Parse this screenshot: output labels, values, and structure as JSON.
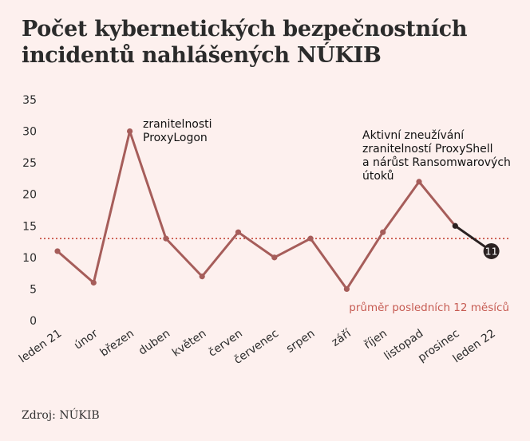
{
  "title": "Počet kybernetických bezpečnostních incidentů nahlášených NÚKIB",
  "source": "Zdroj: NÚKIB",
  "colors": {
    "background": "#fdf0ee",
    "line": "#a65d5a",
    "last_segment": "#2b2222",
    "average_line": "#c0392b",
    "average_label": "#c65b52",
    "text": "#2b2b2b"
  },
  "chart_data": {
    "type": "line",
    "categories": [
      "leden 21",
      "únor",
      "březen",
      "duben",
      "květen",
      "červen",
      "červenec",
      "srpen",
      "září",
      "říjen",
      "listopad",
      "prosinec",
      "leden 22"
    ],
    "values": [
      11,
      6,
      30,
      13,
      7,
      14,
      10,
      13,
      5,
      14,
      22,
      15,
      11
    ],
    "ylim": [
      0,
      35
    ],
    "yticks": [
      0,
      5,
      10,
      15,
      20,
      25,
      30,
      35
    ],
    "grid": false,
    "average": {
      "value": 13,
      "label": "průměr posledních 12 měsíců"
    },
    "highlight": {
      "index": 12,
      "label": "11"
    },
    "annotations": [
      {
        "index": 2,
        "lines": [
          "zranitelnosti",
          "ProxyLogon"
        ]
      },
      {
        "index": 10,
        "lines": [
          "Aktivní zneužívání",
          "zranitelností ProxyShell",
          "a nárůst Ransomwarových",
          "útoků"
        ]
      }
    ]
  }
}
